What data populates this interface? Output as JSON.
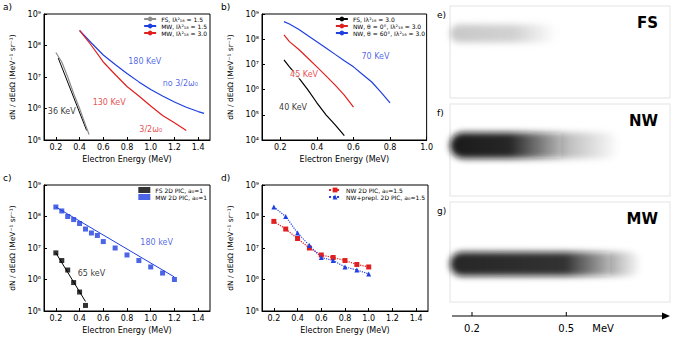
{
  "chart_data": [
    {
      "letter": "a)",
      "type": "line",
      "x_label": "Electron Energy (MeV)",
      "y_label": "dN / dEdΩ (MeV⁻¹ sr⁻¹)",
      "log": "y",
      "grid": false,
      "legend": "upper right",
      "xlim": [
        0.1,
        1.5
      ],
      "xticks": [
        0.2,
        0.4,
        0.6,
        0.8,
        {
          "value": 1,
          "label": "1.0"
        },
        1.2,
        1.4
      ],
      "ylim": [
        100000.0,
        1000000000.0
      ],
      "yticks": [
        {
          "value": 100000.0,
          "label": "10⁵"
        },
        {
          "value": 1000000.0,
          "label": "10⁶"
        },
        {
          "value": 10000000.0,
          "label": "10⁷"
        },
        {
          "value": 100000000.0,
          "label": "10⁸"
        },
        {
          "value": 1000000000.0,
          "label": "10⁹"
        }
      ],
      "series": [
        {
          "name": "FS, Iλ²₁₈ = 1.5",
          "color": "#8c8c8c",
          "x": [
            0.2,
            0.25,
            0.3,
            0.35,
            0.4,
            0.45,
            0.48
          ],
          "values": [
            60000000.0,
            30000000.0,
            10000000.0,
            3000000.0,
            1000000.0,
            300000.0,
            150000.0
          ]
        },
        {
          "name": "MW, Iλ²₁₈ = 1.5",
          "color": "#1f3fe0",
          "x": [
            0.4,
            0.5,
            0.6,
            0.7,
            0.8,
            0.9,
            1.0,
            1.1,
            1.2,
            1.3,
            1.4,
            1.45
          ],
          "values": [
            300000000.0,
            120000000.0,
            50000000.0,
            25000000.0,
            13000000.0,
            7000000.0,
            4000000.0,
            2500000.0,
            1600000.0,
            1100000.0,
            800000.0,
            700000.0
          ]
        },
        {
          "name": "MW, Iλ²₁₈ = 3.0",
          "color": "#e02020",
          "x": [
            0.4,
            0.5,
            0.6,
            0.7,
            0.8,
            0.9,
            1.0,
            1.1,
            1.2,
            1.3
          ],
          "values": [
            300000000.0,
            100000000.0,
            30000000.0,
            12000000.0,
            5000000.0,
            2500000.0,
            1200000.0,
            600000.0,
            350000.0,
            200000.0
          ]
        }
      ],
      "fits": [
        {
          "color": "#000000",
          "x": [
            0.22,
            0.46
          ],
          "values": [
            40000000.0,
            200000.0
          ]
        }
      ],
      "annotations": [
        {
          "text": "36 KeV",
          "x": 0.25,
          "y": 800000.0,
          "color": "#000000"
        },
        {
          "text": "130 KeV",
          "x": 0.65,
          "y": 1500000.0,
          "color": "#e02020"
        },
        {
          "text": "180 KeV",
          "x": 0.95,
          "y": 30000000.0,
          "color": "#1f3fe0"
        },
        {
          "text": "no 3/2ω₀",
          "x": 1.25,
          "y": 6000000.0,
          "color": "#1f3fe0"
        },
        {
          "text": "3/2ω₀",
          "x": 1.0,
          "y": 220000.0,
          "color": "#e02020"
        }
      ]
    },
    {
      "letter": "b)",
      "type": "line",
      "x_label": "Electron Energy (MeV)",
      "y_label": "dN / dEdΩ (MeV⁻¹ sr⁻¹)",
      "log": "y",
      "grid": false,
      "legend": "upper right",
      "xlim": [
        0.1,
        1.0
      ],
      "xticks": [
        0.2,
        0.4,
        0.6,
        0.8,
        {
          "value": 1,
          "label": "1.0"
        }
      ],
      "ylim": [
        10000.0,
        1000000000.0
      ],
      "yticks": [
        {
          "value": 10000.0,
          "label": "10⁴"
        },
        {
          "value": 100000.0,
          "label": "10⁵"
        },
        {
          "value": 1000000.0,
          "label": "10⁶"
        },
        {
          "value": 10000000.0,
          "label": "10⁷"
        },
        {
          "value": 100000000.0,
          "label": "10⁸"
        },
        {
          "value": 1000000000.0,
          "label": "10⁹"
        }
      ],
      "series": [
        {
          "name": "FS, Iλ²₁₈ = 3.0",
          "color": "#000000",
          "x": [
            0.22,
            0.25,
            0.3,
            0.35,
            0.4,
            0.45,
            0.5,
            0.55
          ],
          "values": [
            15000000.0,
            8000000.0,
            3000000.0,
            1000000.0,
            300000.0,
            100000.0,
            40000.0,
            15000.0
          ]
        },
        {
          "name": "NW, θ = 0°, Iλ²₁₈ = 3.0",
          "color": "#e02020",
          "x": [
            0.22,
            0.25,
            0.3,
            0.35,
            0.4,
            0.45,
            0.5,
            0.55,
            0.6
          ],
          "values": [
            150000000.0,
            80000000.0,
            40000000.0,
            18000000.0,
            8000000.0,
            3500000.0,
            1500000.0,
            600000.0,
            200000.0
          ]
        },
        {
          "name": "NW, θ = 60°, Iλ²₁₈ = 3.0",
          "color": "#1f3fe0",
          "x": [
            0.22,
            0.25,
            0.3,
            0.35,
            0.4,
            0.45,
            0.5,
            0.55,
            0.6,
            0.65,
            0.7,
            0.75,
            0.8
          ],
          "values": [
            500000000.0,
            400000000.0,
            250000000.0,
            140000000.0,
            80000000.0,
            45000000.0,
            25000000.0,
            14000000.0,
            8000000.0,
            4000000.0,
            2000000.0,
            800000.0,
            300000.0
          ]
        }
      ],
      "annotations": [
        {
          "text": "40 KeV",
          "x": 0.27,
          "y": 200000.0,
          "color": "#000000"
        },
        {
          "text": "45 KeV",
          "x": 0.33,
          "y": 4000000.0,
          "color": "#e02020"
        },
        {
          "text": "70 KeV",
          "x": 0.72,
          "y": 20000000.0,
          "color": "#1f3fe0"
        }
      ]
    },
    {
      "letter": "c)",
      "type": "scatter",
      "x_label": "Electron Energy (MeV)",
      "y_label": "dN / dEdΩ (MeV⁻¹ sr⁻¹)",
      "log": "y",
      "grid": false,
      "legend": "upper right",
      "xlim": [
        0.1,
        1.5
      ],
      "xticks": [
        0.2,
        0.4,
        0.6,
        0.8,
        {
          "value": 1,
          "label": "1.0"
        },
        1.2,
        1.4
      ],
      "ylim": [
        100000.0,
        1000000000.0
      ],
      "yticks": [
        {
          "value": 100000.0,
          "label": "10⁵"
        },
        {
          "value": 1000000.0,
          "label": "10⁶"
        },
        {
          "value": 10000000.0,
          "label": "10⁷"
        },
        {
          "value": 100000000.0,
          "label": "10⁸"
        },
        {
          "value": 1000000000.0,
          "label": "10⁹"
        }
      ],
      "series": [
        {
          "name": "FS 2D PIC, a₀=1",
          "color": "#000000",
          "marker": "square",
          "x": [
            0.2,
            0.25,
            0.3,
            0.35,
            0.4,
            0.45
          ],
          "values": [
            7000000.0,
            4000000.0,
            2000000.0,
            800000.0,
            400000.0,
            150000.0
          ]
        },
        {
          "name": "MW 2D PIC, a₀=1",
          "color": "#1f3fe0",
          "marker": "square",
          "x": [
            0.2,
            0.25,
            0.3,
            0.35,
            0.4,
            0.45,
            0.5,
            0.55,
            0.6,
            0.7,
            0.8,
            0.9,
            1.0,
            1.1,
            1.2
          ],
          "values": [
            200000000.0,
            150000000.0,
            100000000.0,
            80000000.0,
            60000000.0,
            40000000.0,
            30000000.0,
            25000000.0,
            16000000.0,
            10000000.0,
            6000000.0,
            4000000.0,
            2500000.0,
            1600000.0,
            1000000.0
          ]
        }
      ],
      "fits": [
        {
          "color": "#000000",
          "x": [
            0.2,
            0.45
          ],
          "values": [
            7000000.0,
            200000.0
          ]
        },
        {
          "color": "#1f3fe0",
          "x": [
            0.2,
            1.2
          ],
          "values": [
            200000000.0,
            1200000.0
          ]
        }
      ],
      "annotations": [
        {
          "text": "65 keV",
          "x": 0.5,
          "y": 1500000.0,
          "color": "#000000"
        },
        {
          "text": "180 keV",
          "x": 1.05,
          "y": 15000000.0,
          "color": "#1f3fe0"
        }
      ]
    },
    {
      "letter": "d)",
      "type": "line",
      "x_label": "Electron Energy (MeV)",
      "y_label": "dN / dEdΩ (MeV⁻¹ sr⁻¹)",
      "log": "y",
      "grid": false,
      "legend": "upper right",
      "xlim": [
        0.1,
        1.5
      ],
      "xticks": [
        0.2,
        0.4,
        0.6,
        0.8,
        {
          "value": 1,
          "label": "1.0"
        },
        1.2,
        1.4
      ],
      "ylim": [
        100000.0,
        1000000000.0
      ],
      "yticks": [
        {
          "value": 100000.0,
          "label": "10⁵"
        },
        {
          "value": 1000000.0,
          "label": "10⁶"
        },
        {
          "value": 10000000.0,
          "label": "10⁷"
        },
        {
          "value": 100000000.0,
          "label": "10⁸"
        },
        {
          "value": 1000000000.0,
          "label": "10⁹"
        }
      ],
      "series": [
        {
          "name": "NW 2D PIC, a₀=1.5",
          "color": "#e02020",
          "marker": "square",
          "line_style": "dotted",
          "x": [
            0.2,
            0.3,
            0.4,
            0.5,
            0.6,
            0.7,
            0.8,
            0.9,
            1.0
          ],
          "values": [
            70000000.0,
            40000000.0,
            20000000.0,
            10000000.0,
            6000000.0,
            5000000.0,
            4000000.0,
            3000000.0,
            2500000.0
          ]
        },
        {
          "name": "NW+prepl. 2D PIC, a₀=1.5",
          "color": "#1f3fe0",
          "marker": "triangle",
          "line_style": "dotted",
          "x": [
            0.2,
            0.3,
            0.4,
            0.5,
            0.6,
            0.7,
            0.8,
            0.9,
            1.0
          ],
          "values": [
            200000000.0,
            100000000.0,
            30000000.0,
            12000000.0,
            5000000.0,
            4000000.0,
            2500000.0,
            2000000.0,
            1500000.0
          ]
        }
      ]
    }
  ],
  "images": {
    "panels": [
      {
        "letter": "e)",
        "label": "FS",
        "streak": [
          0.13,
          0.47
        ],
        "color": "#9a9a9a"
      },
      {
        "letter": "f)",
        "label": "NW",
        "streak": [
          0.13,
          0.67
        ],
        "color": "#111111"
      },
      {
        "letter": "g)",
        "label": "MW",
        "streak": [
          0.13,
          0.74
        ],
        "color": "#111111"
      }
    ],
    "energy_axis": {
      "xlim": [
        0.13,
        0.83
      ],
      "ticks": [
        0.2,
        0.5
      ],
      "unit": "MeV"
    }
  }
}
